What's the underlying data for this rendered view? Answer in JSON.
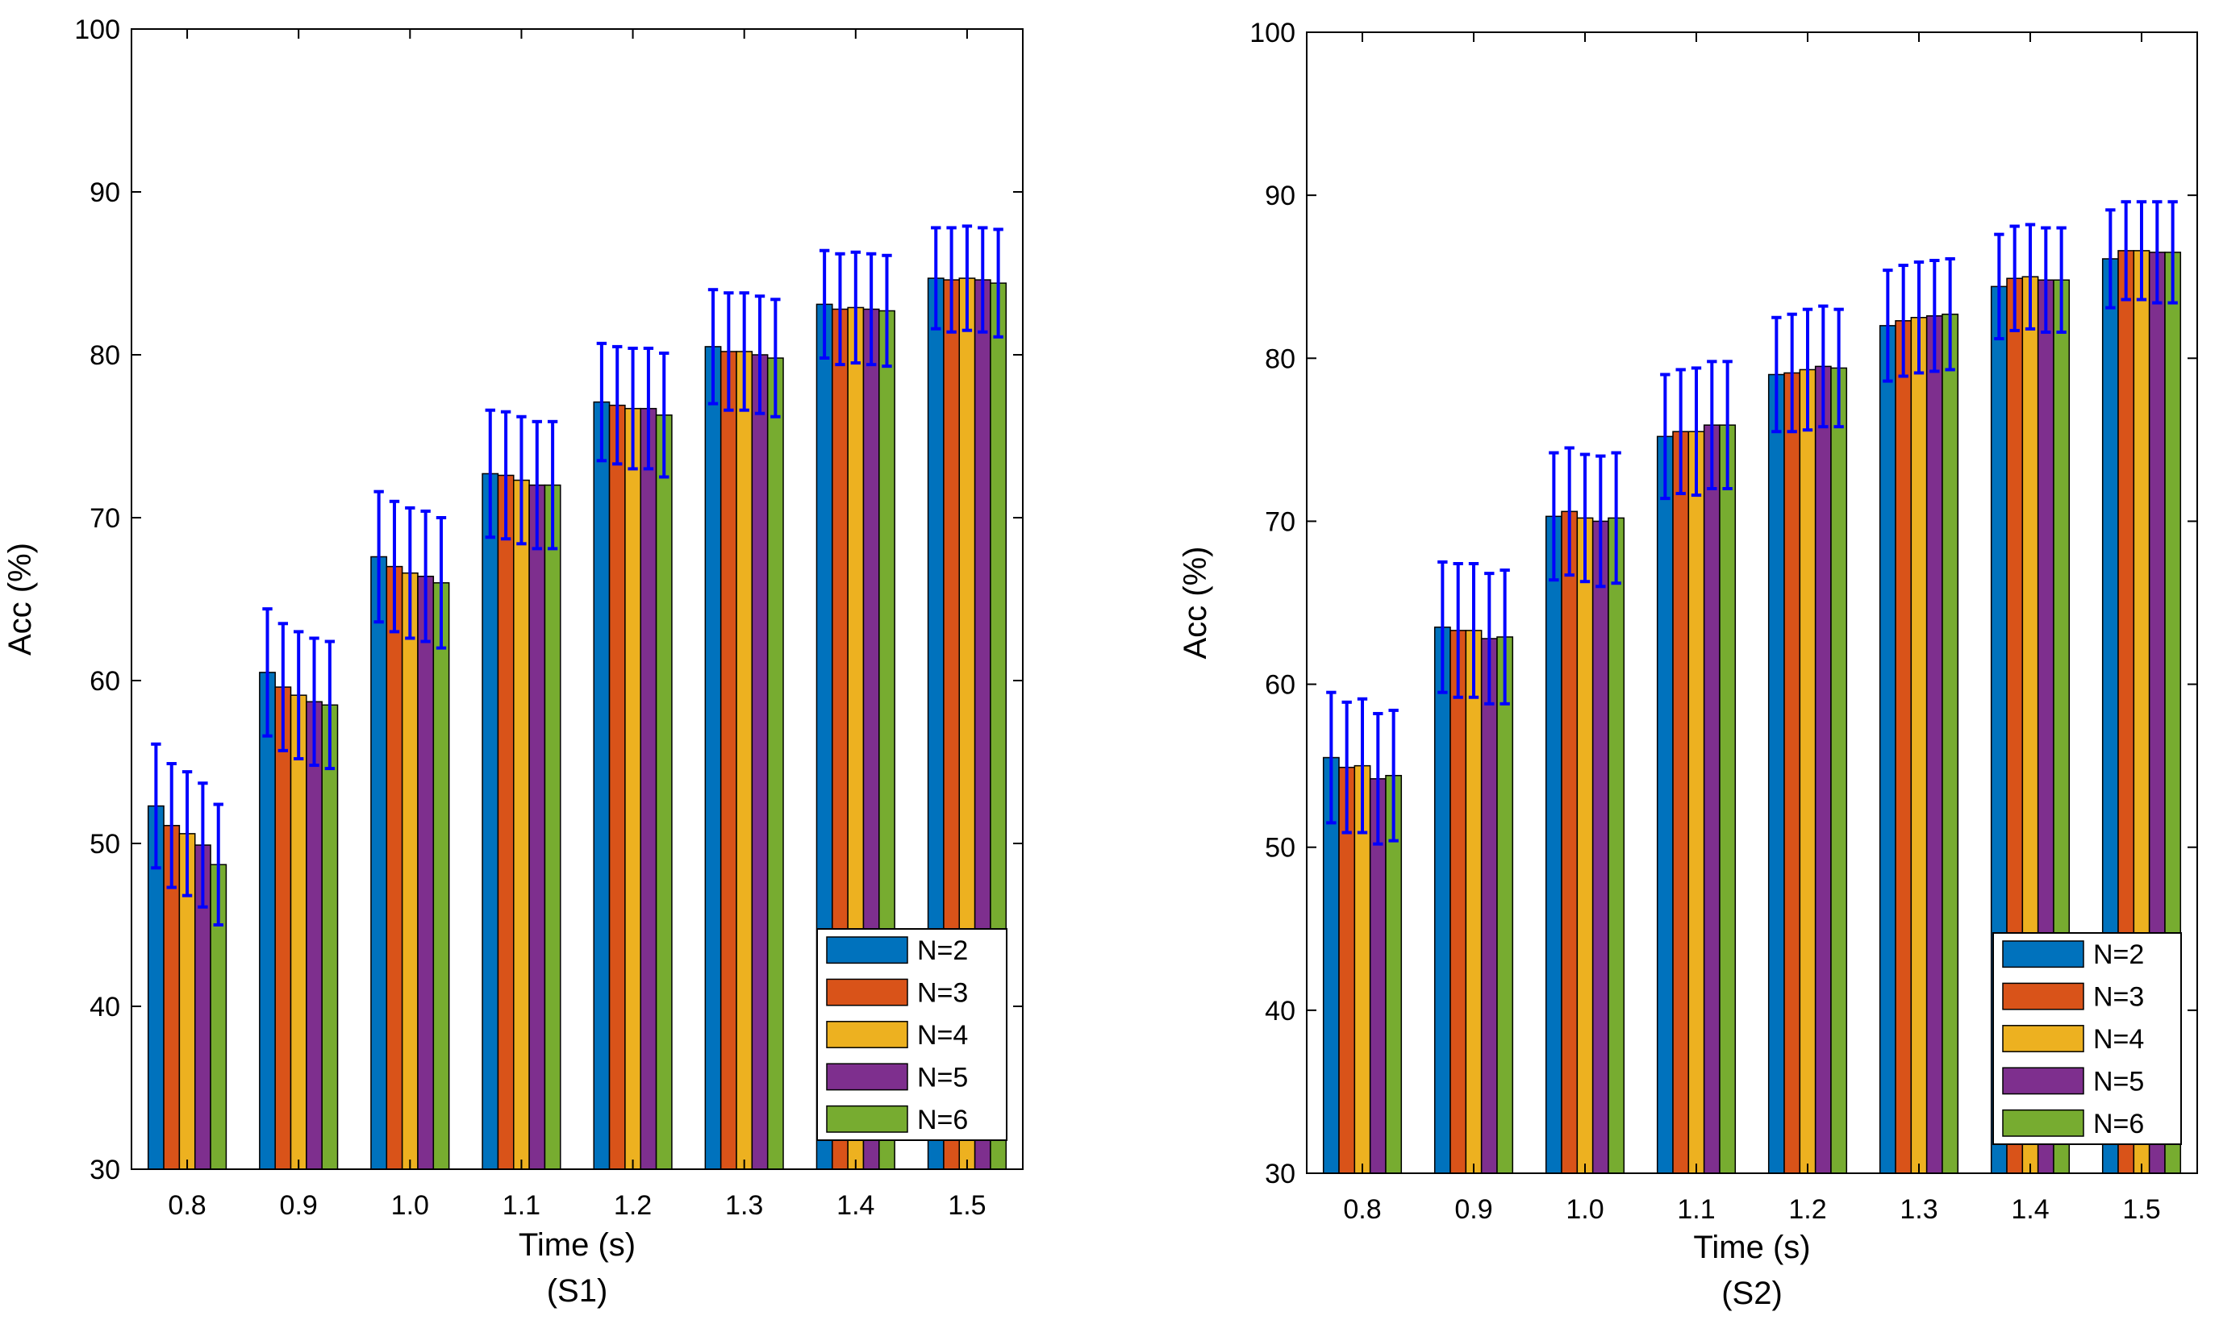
{
  "chart_data": [
    {
      "type": "bar",
      "panel": "S1",
      "caption": "(S1)",
      "xlabel": "Time (s)",
      "ylabel": "Acc (%)",
      "ylim": [
        30,
        100
      ],
      "yticks": [
        "30",
        "40",
        "50",
        "60",
        "70",
        "80",
        "90",
        "100"
      ],
      "categories": [
        "0.8",
        "0.9",
        "1.0",
        "1.1",
        "1.2",
        "1.3",
        "1.4",
        "1.5"
      ],
      "error_bars": true,
      "legend_position": "bottom-right",
      "series": [
        {
          "name": "N=2",
          "color": "#0072BD",
          "values": [
            52.3,
            60.5,
            67.6,
            72.7,
            77.1,
            80.5,
            83.1,
            84.7
          ],
          "errors": [
            3.8,
            3.9,
            4.0,
            3.9,
            3.6,
            3.5,
            3.3,
            3.1
          ]
        },
        {
          "name": "N=3",
          "color": "#D95319",
          "values": [
            51.1,
            59.6,
            67.0,
            72.6,
            76.9,
            80.2,
            82.8,
            84.6
          ],
          "errors": [
            3.8,
            3.9,
            4.0,
            3.9,
            3.6,
            3.6,
            3.4,
            3.2
          ]
        },
        {
          "name": "N=4",
          "color": "#EDB120",
          "values": [
            50.6,
            59.1,
            66.6,
            72.3,
            76.7,
            80.2,
            82.9,
            84.7
          ],
          "errors": [
            3.8,
            3.9,
            4.0,
            3.9,
            3.7,
            3.6,
            3.4,
            3.2
          ]
        },
        {
          "name": "N=5",
          "color": "#7E2F8E",
          "values": [
            49.9,
            58.7,
            66.4,
            72.0,
            76.7,
            80.0,
            82.8,
            84.6
          ],
          "errors": [
            3.8,
            3.9,
            4.0,
            3.9,
            3.7,
            3.6,
            3.4,
            3.2
          ]
        },
        {
          "name": "N=6",
          "color": "#77AC30",
          "values": [
            48.7,
            58.5,
            66.0,
            72.0,
            76.3,
            79.8,
            82.7,
            84.4
          ],
          "errors": [
            3.7,
            3.9,
            4.0,
            3.9,
            3.8,
            3.6,
            3.4,
            3.3
          ]
        }
      ]
    },
    {
      "type": "bar",
      "panel": "S2",
      "caption": "(S2)",
      "xlabel": "Time (s)",
      "ylabel": "Acc (%)",
      "ylim": [
        30,
        100
      ],
      "yticks": [
        "30",
        "40",
        "50",
        "60",
        "70",
        "80",
        "90",
        "100"
      ],
      "categories": [
        "0.8",
        "0.9",
        "1.0",
        "1.1",
        "1.2",
        "1.3",
        "1.4",
        "1.5"
      ],
      "error_bars": true,
      "legend_position": "bottom-right",
      "series": [
        {
          "name": "N=2",
          "color": "#0072BD",
          "values": [
            55.5,
            63.5,
            70.3,
            75.2,
            79.0,
            82.0,
            84.4,
            86.1
          ],
          "errors": [
            4.0,
            4.0,
            3.9,
            3.8,
            3.5,
            3.4,
            3.2,
            3.0
          ]
        },
        {
          "name": "N=3",
          "color": "#D95319",
          "values": [
            54.9,
            63.3,
            70.6,
            75.5,
            79.1,
            82.3,
            84.9,
            86.6
          ],
          "errors": [
            4.0,
            4.1,
            3.9,
            3.8,
            3.6,
            3.4,
            3.2,
            3.0
          ]
        },
        {
          "name": "N=4",
          "color": "#EDB120",
          "values": [
            55.0,
            63.3,
            70.2,
            75.5,
            79.3,
            82.5,
            85.0,
            86.6
          ],
          "errors": [
            4.1,
            4.1,
            3.9,
            3.9,
            3.7,
            3.4,
            3.2,
            3.0
          ]
        },
        {
          "name": "N=5",
          "color": "#7E2F8E",
          "values": [
            54.2,
            62.8,
            70.0,
            75.9,
            79.5,
            82.6,
            84.8,
            86.5
          ],
          "errors": [
            4.0,
            4.0,
            4.0,
            3.9,
            3.7,
            3.4,
            3.2,
            3.1
          ]
        },
        {
          "name": "N=6",
          "color": "#77AC30",
          "values": [
            54.4,
            62.9,
            70.2,
            75.9,
            79.4,
            82.7,
            84.8,
            86.5
          ],
          "errors": [
            4.0,
            4.1,
            4.0,
            3.9,
            3.6,
            3.4,
            3.2,
            3.1
          ]
        }
      ]
    }
  ]
}
